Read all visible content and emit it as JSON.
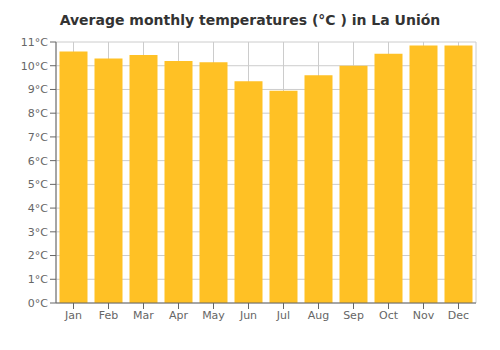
{
  "chart_data": {
    "type": "bar",
    "title": "Average monthly temperatures (°C ) in La Unión",
    "categories": [
      "Jan",
      "Feb",
      "Mar",
      "Apr",
      "May",
      "Jun",
      "Jul",
      "Aug",
      "Sep",
      "Oct",
      "Nov",
      "Dec"
    ],
    "values": [
      10.6,
      10.3,
      10.45,
      10.2,
      10.15,
      9.35,
      8.95,
      9.6,
      10.0,
      10.5,
      10.85,
      10.85
    ],
    "color": "#FFC125",
    "ylim": [
      0,
      11
    ],
    "yticks": [
      {
        "value": 0,
        "label": "0°C"
      },
      {
        "value": 1,
        "label": "1°C"
      },
      {
        "value": 2,
        "label": "2°C"
      },
      {
        "value": 3,
        "label": "3°C"
      },
      {
        "value": 4,
        "label": "4°C"
      },
      {
        "value": 5,
        "label": "5°C"
      },
      {
        "value": 6,
        "label": "6°C"
      },
      {
        "value": 7,
        "label": "7°C"
      },
      {
        "value": 8,
        "label": "8°C"
      },
      {
        "value": 9,
        "label": "9°C"
      },
      {
        "value": 10,
        "label": "10°C"
      },
      {
        "value": 11,
        "label": "11°C"
      }
    ],
    "grid": true
  }
}
